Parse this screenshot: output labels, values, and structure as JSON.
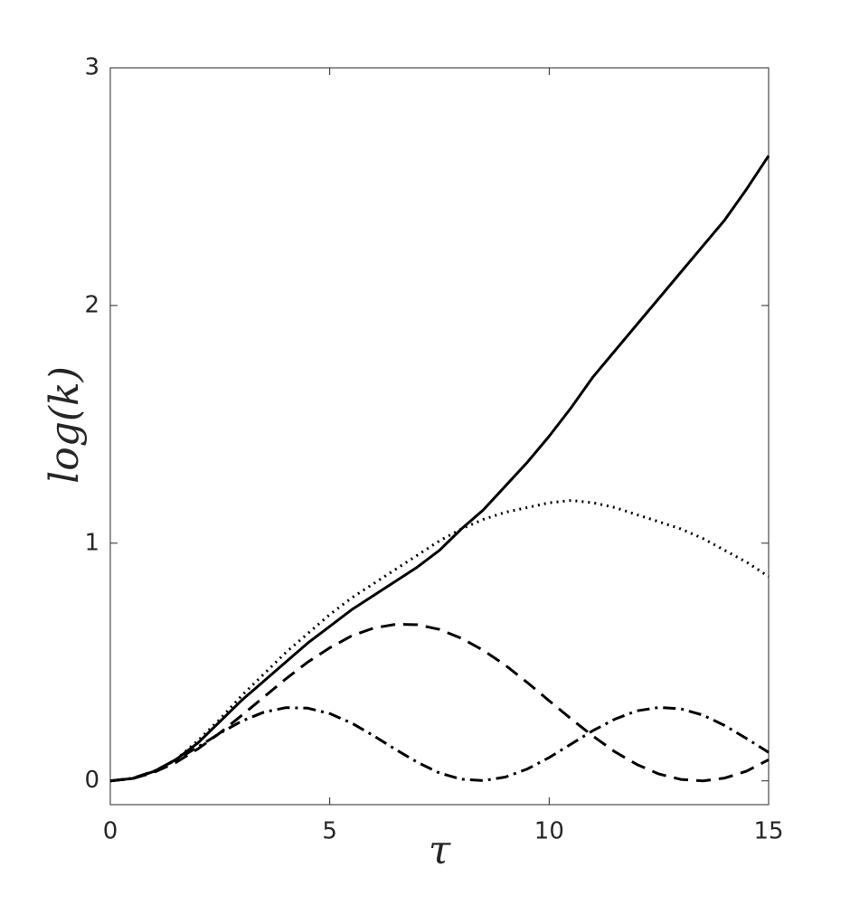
{
  "chart_data": {
    "type": "line",
    "x_label": "τ",
    "y_label": "log(k)",
    "x": [
      0,
      0.5,
      1,
      1.5,
      2,
      2.5,
      3,
      3.5,
      4,
      4.5,
      5,
      5.5,
      6,
      6.5,
      7,
      7.5,
      8,
      8.5,
      9,
      9.5,
      10,
      10.5,
      11,
      11.5,
      12,
      12.5,
      13,
      13.5,
      14,
      14.5,
      15
    ],
    "series": [
      {
        "color": "#000000",
        "dash": "solid",
        "values": [
          0,
          0.01,
          0.04,
          0.09,
          0.16,
          0.25,
          0.34,
          0.42,
          0.5,
          0.58,
          0.65,
          0.72,
          0.78,
          0.84,
          0.9,
          0.97,
          1.06,
          1.14,
          1.24,
          1.34,
          1.45,
          1.57,
          1.7,
          1.81,
          1.92,
          2.03,
          2.14,
          2.25,
          2.36,
          2.49,
          2.63
        ]
      },
      {
        "color": "#000000",
        "dash": "dotted",
        "values": [
          0,
          0.01,
          0.04,
          0.09,
          0.17,
          0.26,
          0.36,
          0.45,
          0.54,
          0.62,
          0.7,
          0.77,
          0.83,
          0.89,
          0.95,
          1.01,
          1.06,
          1.1,
          1.13,
          1.15,
          1.17,
          1.18,
          1.17,
          1.15,
          1.12,
          1.09,
          1.06,
          1.02,
          0.97,
          0.92,
          0.86
        ]
      },
      {
        "color": "#000000",
        "dash": "dashed",
        "values": [
          0,
          0.009,
          0.036,
          0.078,
          0.135,
          0.202,
          0.276,
          0.353,
          0.429,
          0.5,
          0.56,
          0.61,
          0.643,
          0.659,
          0.657,
          0.637,
          0.6,
          0.549,
          0.487,
          0.414,
          0.337,
          0.261,
          0.188,
          0.122,
          0.069,
          0.029,
          0.006,
          0,
          0.012,
          0.041,
          0.089
        ]
      },
      {
        "color": "#000000",
        "dash": "dashdot",
        "values": [
          0,
          0.011,
          0.041,
          0.088,
          0.143,
          0.201,
          0.252,
          0.289,
          0.308,
          0.306,
          0.283,
          0.243,
          0.19,
          0.132,
          0.078,
          0.033,
          0.007,
          0.001,
          0.016,
          0.05,
          0.098,
          0.155,
          0.212,
          0.26,
          0.295,
          0.309,
          0.303,
          0.277,
          0.233,
          0.178,
          0.12
        ]
      }
    ],
    "xlim": [
      0,
      15
    ],
    "xticks": [
      0,
      5,
      10,
      15
    ],
    "ylim": [
      -0.1,
      3
    ],
    "yticks": [
      0,
      1,
      2,
      3
    ],
    "grid": false
  }
}
